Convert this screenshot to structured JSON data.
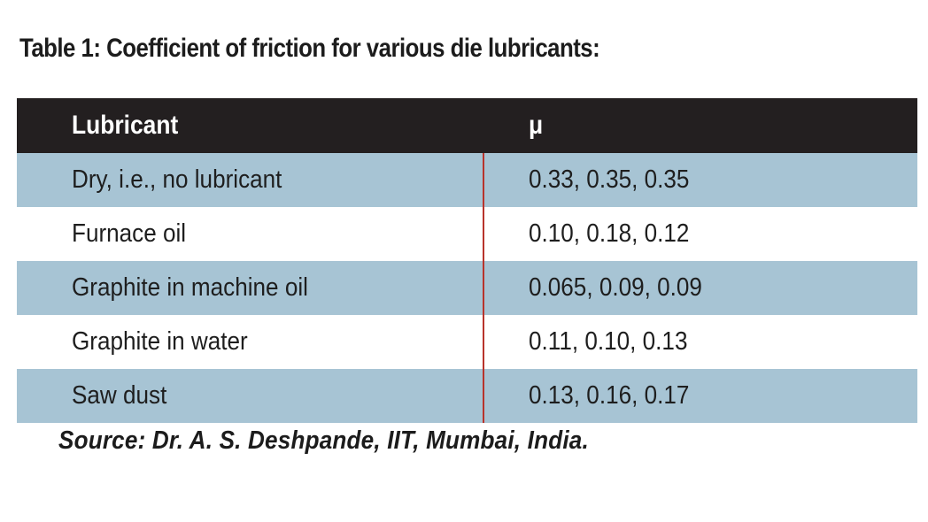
{
  "title": "Table 1: Coefficient of friction for various die lubricants:",
  "table": {
    "headers": [
      "Lubricant",
      "μ"
    ],
    "rows": [
      [
        "Dry, i.e., no lubricant",
        "0.33, 0.35, 0.35"
      ],
      [
        "Furnace oil",
        "0.10, 0.18, 0.12"
      ],
      [
        "Graphite in machine oil",
        "0.065, 0.09, 0.09"
      ],
      [
        "Graphite in water",
        "0.11, 0.10, 0.13"
      ],
      [
        "Saw dust",
        "0.13, 0.16, 0.17"
      ]
    ]
  },
  "source": "Source: Dr. A. S. Deshpande, IIT, Mumbai, India.",
  "colors": {
    "header_bg": "#231f20",
    "shaded_row_bg": "#a7c4d4",
    "divider": "#b8332b"
  }
}
